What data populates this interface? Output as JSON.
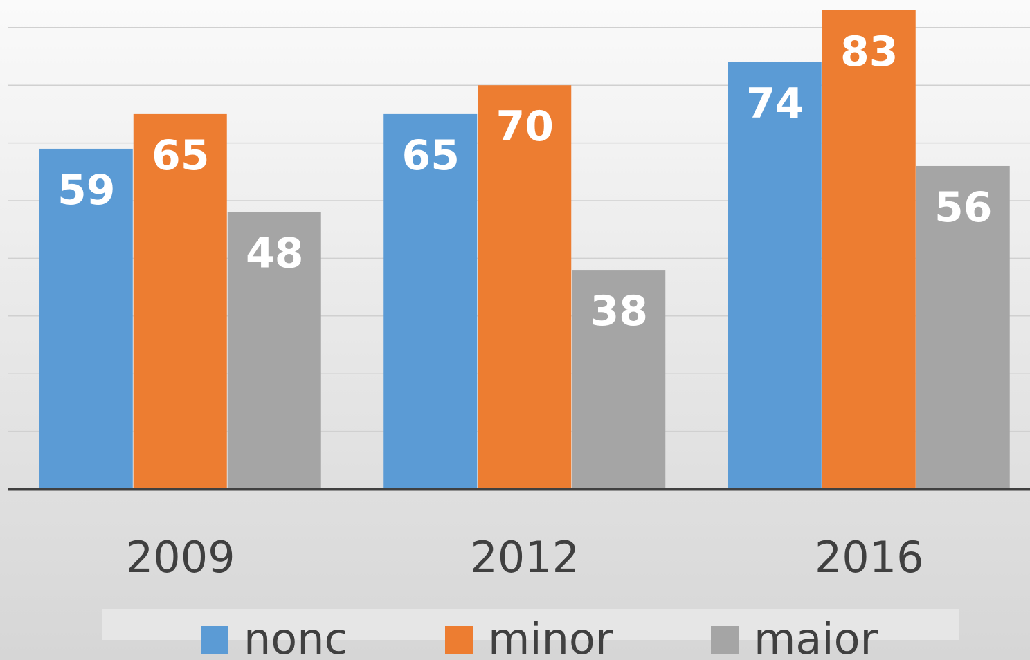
{
  "chart_data": {
    "type": "bar",
    "categories": [
      "2009",
      "2012",
      "2016"
    ],
    "series": [
      {
        "name": "nonc",
        "color": "#5b9bd5",
        "values": [
          59,
          65,
          74
        ]
      },
      {
        "name": "minor",
        "color": "#ed7d31",
        "values": [
          65,
          70,
          83
        ]
      },
      {
        "name": "maior",
        "color": "#a5a5a5",
        "values": [
          48,
          38,
          56
        ]
      }
    ],
    "ylim": [
      0,
      85
    ],
    "yticks": [
      0,
      10,
      20,
      30,
      40,
      50,
      60,
      70,
      80
    ],
    "grid": true,
    "legend": "bottom"
  }
}
